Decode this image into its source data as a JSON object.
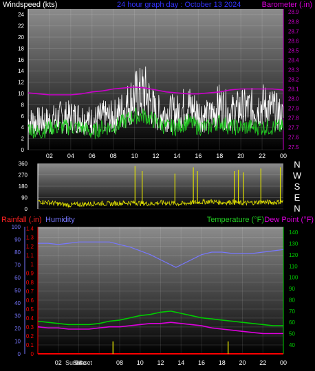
{
  "colors": {
    "background": "#000000",
    "wind_avg": "#22cc22",
    "wind_gust": "#ffffff",
    "barometer": "#cc00cc",
    "direction": "#e0e000",
    "humidity": "#7777ff",
    "temperature": "#00cc00",
    "dewpoint": "#dd00dd",
    "rainfall": "#ff0000",
    "sunrise_marker": "#cccc00",
    "axis_text": "#ffffff"
  },
  "top_panel": {
    "title": "24 hour graph day : October 13 2024",
    "left_label": "Windspeed (kts)",
    "right_label": "Barometer (.in)"
  },
  "middle_panel": {
    "compass": [
      "N",
      "W",
      "S",
      "E",
      "N"
    ]
  },
  "bottom_panel": {
    "left_label_1": "Rainfall (.in)",
    "left_label_2": "Humidity",
    "right_label_1": "Temperature (°F)",
    "right_label_2": "Dew Point (°F)",
    "sunrise_label": "Sunrise",
    "sunset_label": "Sunset"
  },
  "chart_data": [
    {
      "type": "line",
      "name": "wind-barometer",
      "x_ticks": [
        "02",
        "04",
        "06",
        "08",
        "10",
        "12",
        "14",
        "16",
        "18",
        "20",
        "22",
        "00"
      ],
      "y_left_ticks": [
        0,
        2,
        4,
        6,
        8,
        10,
        12,
        14,
        16,
        18,
        20,
        22,
        24
      ],
      "y_left_range": [
        0,
        25
      ],
      "y_right_ticks": [
        27.5,
        27.6,
        27.7,
        27.8,
        27.9,
        28.0,
        28.1,
        28.2,
        28.3,
        28.4,
        28.5,
        28.6,
        28.7,
        28.8,
        28.9
      ],
      "y_right_range": [
        27.47,
        28.93
      ],
      "x_range": [
        0,
        24
      ],
      "barometer": {
        "x": [
          0,
          1,
          2,
          3,
          4,
          5,
          6,
          7,
          8,
          9,
          10,
          11,
          12,
          13,
          14,
          15,
          16,
          17,
          18,
          19,
          20,
          21,
          22,
          23,
          24
        ],
        "values": [
          28.06,
          28.05,
          28.04,
          28.04,
          28.04,
          28.05,
          28.07,
          28.08,
          28.1,
          28.11,
          28.12,
          28.11,
          28.09,
          28.07,
          28.06,
          28.05,
          28.05,
          28.06,
          28.07,
          28.09,
          28.1,
          28.1,
          28.1,
          28.1,
          28.09
        ]
      },
      "wind_avg_kts": {
        "x": [
          0,
          1,
          2,
          3,
          4,
          5,
          6,
          7,
          8,
          9,
          10,
          11,
          12,
          13,
          14,
          15,
          16,
          17,
          18,
          19,
          20,
          21,
          22,
          23,
          24
        ],
        "values": [
          4,
          3,
          4,
          4,
          4,
          4,
          3,
          4,
          4,
          5,
          6,
          6,
          5,
          4,
          4,
          5,
          4,
          4,
          5,
          4,
          4,
          4,
          4,
          4,
          4
        ]
      },
      "wind_gust_kts": {
        "x": [
          0,
          1,
          2,
          3,
          4,
          5,
          6,
          7,
          8,
          9,
          10,
          11,
          12,
          13,
          14,
          15,
          16,
          17,
          18,
          19,
          20,
          21,
          22,
          23,
          24
        ],
        "values": [
          7,
          7,
          7,
          8,
          8,
          8,
          7,
          8,
          8,
          10,
          13,
          14,
          9,
          9,
          9,
          11,
          9,
          8,
          11,
          9,
          10,
          10,
          11,
          10,
          8
        ]
      }
    },
    {
      "type": "line",
      "name": "wind-direction",
      "x_ticks": [
        "02",
        "04",
        "06",
        "08",
        "10",
        "12",
        "14",
        "16",
        "18",
        "20",
        "22",
        "00"
      ],
      "y_ticks": [
        0,
        90,
        180,
        270,
        360
      ],
      "y_range": [
        0,
        360
      ],
      "x_range": [
        0,
        24
      ],
      "direction_deg": {
        "x": [
          0,
          1,
          2,
          3,
          4,
          5,
          6,
          7,
          8,
          9,
          10,
          11,
          12,
          13,
          14,
          15,
          16,
          17,
          18,
          19,
          20,
          21,
          22,
          23,
          24
        ],
        "values": [
          60,
          50,
          40,
          30,
          35,
          40,
          45,
          40,
          45,
          50,
          45,
          40,
          50,
          45,
          40,
          50,
          55,
          60,
          50,
          55,
          45,
          50,
          55,
          50,
          60
        ]
      },
      "direction_spikes": {
        "x": [
          9.5,
          10.2,
          13.4,
          15.2,
          15.6,
          19.2,
          19.6,
          20.1,
          21.8,
          23.7
        ],
        "values": [
          340,
          300,
          280,
          330,
          300,
          300,
          310,
          290,
          320,
          330
        ]
      }
    },
    {
      "type": "line",
      "name": "temperature-humidity-rain",
      "x_ticks": [
        "02",
        "04",
        "06",
        "08",
        "10",
        "12",
        "14",
        "16",
        "18",
        "20",
        "22",
        "00"
      ],
      "y_left_outer_ticks": [
        0,
        10,
        20,
        30,
        40,
        50,
        60,
        70,
        80,
        90,
        100
      ],
      "y_left_outer_range": [
        0,
        100
      ],
      "y_left_inner_ticks": [
        0,
        0.1,
        0.2,
        0.3,
        0.4,
        0.5,
        0.6,
        0.7,
        0.8,
        0.9,
        1,
        1.1,
        1.2,
        1.3,
        1.4
      ],
      "y_left_inner_range": [
        0,
        1.42
      ],
      "y_right_ticks": [
        40,
        50,
        60,
        70,
        80,
        90,
        100,
        110,
        120,
        130,
        140
      ],
      "y_right_range": [
        32,
        145
      ],
      "x_range": [
        0,
        24
      ],
      "humidity_pct": {
        "x": [
          0,
          1,
          2,
          3,
          4,
          5,
          6,
          7,
          8,
          9,
          10,
          11,
          12,
          13,
          13.5,
          14,
          15,
          16,
          17,
          18,
          19,
          20,
          21,
          22,
          23,
          24
        ],
        "values": [
          87,
          87,
          86,
          87,
          88,
          88,
          88,
          88,
          86,
          84,
          81,
          78,
          74,
          70,
          68,
          70,
          74,
          78,
          80,
          80,
          79,
          79,
          79,
          80,
          81,
          82
        ]
      },
      "temperature_f": {
        "x": [
          0,
          1,
          2,
          3,
          4,
          5,
          6,
          7,
          8,
          9,
          10,
          11,
          12,
          13,
          14,
          15,
          16,
          17,
          18,
          19,
          20,
          21,
          22,
          23,
          24
        ],
        "values": [
          61,
          60,
          59,
          58,
          58,
          58,
          59,
          61,
          62,
          64,
          66,
          67,
          69,
          70,
          68,
          66,
          64,
          63,
          62,
          61,
          60,
          59,
          58,
          57,
          57
        ]
      },
      "dewpoint_f": {
        "x": [
          0,
          1,
          2,
          3,
          4,
          5,
          6,
          7,
          8,
          9,
          10,
          11,
          12,
          13,
          14,
          15,
          16,
          17,
          18,
          19,
          20,
          21,
          22,
          23,
          24
        ],
        "values": [
          56,
          55,
          55,
          54,
          54,
          54,
          55,
          56,
          56,
          57,
          58,
          59,
          59,
          60,
          59,
          58,
          57,
          55,
          54,
          53,
          52,
          51,
          50,
          50,
          50
        ]
      },
      "rainfall_in": {
        "x": [
          0,
          24
        ],
        "values": [
          0,
          0
        ]
      },
      "sunrise_hour": 7.35,
      "sunset_hour": 18.6
    }
  ]
}
